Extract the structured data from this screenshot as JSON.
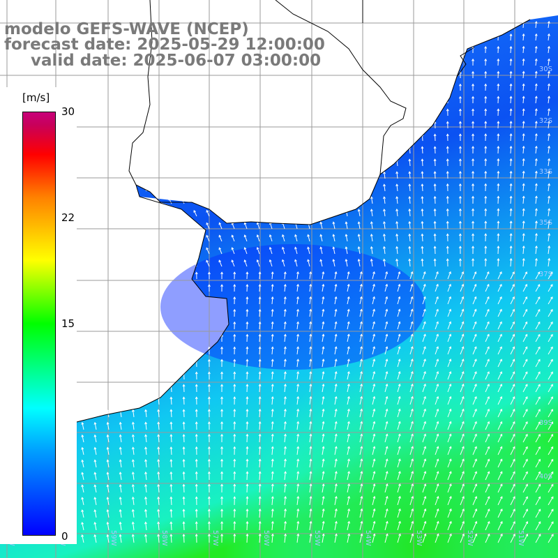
{
  "title": {
    "line1": "modelo GEFS-WAVE (NCEP)",
    "line2": "forecast date: 2025-05-29 12:00:00",
    "line3": "valid date: 2025-06-07 03:00:00"
  },
  "colorbar": {
    "unit": "[m/s]",
    "ticks": [
      "30",
      "22",
      "15",
      "0"
    ],
    "min": 0,
    "max": 30,
    "colors": [
      "#0000ff",
      "#00a0ff",
      "#00ffff",
      "#00ff00",
      "#ffff00",
      "#ff8000",
      "#ff0000",
      "#c8005a"
    ]
  },
  "map": {
    "land_color": "#ffffff",
    "grid_color": "#9a9a9a",
    "coast_color": "#000000",
    "arrow_color": "#ffffff",
    "lat_labels": [
      "30S",
      "32S",
      "33S",
      "35S",
      "37S",
      "39S",
      "40S"
    ],
    "lon_labels": [
      "61W",
      "60W",
      "59W",
      "58W",
      "57W",
      "56W",
      "55W",
      "54W",
      "53W",
      "52W",
      "51W"
    ]
  }
}
